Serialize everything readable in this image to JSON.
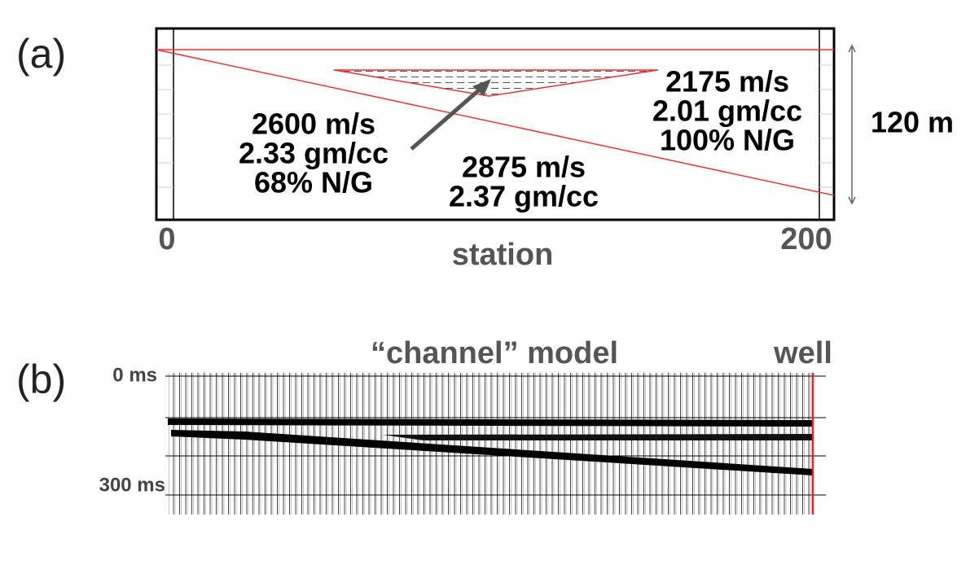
{
  "panel_a": {
    "label": "(a)",
    "layers": [
      {
        "lines": [
          "2600 m/s",
          "2.33 gm/cc",
          "68% N/G"
        ]
      },
      {
        "lines": [
          "2175 m/s",
          "2.01 gm/cc",
          "100% N/G"
        ]
      },
      {
        "lines": [
          "2875 m/s",
          "2.37 gm/cc"
        ]
      }
    ],
    "thickness": "120 m",
    "x_axis": {
      "start": "0",
      "end": "200",
      "label": "station"
    }
  },
  "panel_b": {
    "label": "(b)",
    "title": "“channel” model",
    "well": "well",
    "time_labels": [
      "0 ms",
      "300 ms"
    ]
  }
}
